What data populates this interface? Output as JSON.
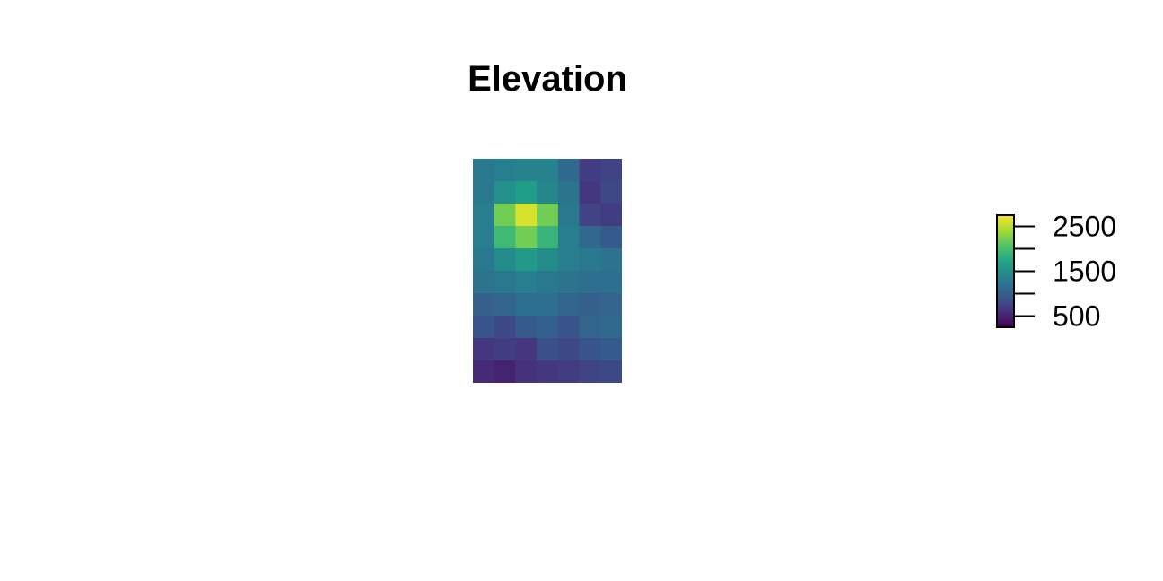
{
  "chart_data": {
    "type": "heatmap",
    "title": "Elevation",
    "xlabel": "",
    "ylabel": "",
    "colormap": "viridis",
    "value_range": [
      250,
      2750
    ],
    "legend": {
      "position": "right",
      "tick_values": [
        500,
        1000,
        1500,
        2000,
        2500
      ],
      "labeled_ticks": [
        {
          "value": 500,
          "label": "500"
        },
        {
          "value": 1500,
          "label": "1500"
        },
        {
          "value": 2500,
          "label": "2500"
        }
      ]
    },
    "grid_rows": 10,
    "grid_cols": 7,
    "values": [
      [
        1250,
        1300,
        1350,
        1350,
        1100,
        700,
        750
      ],
      [
        1250,
        1500,
        1650,
        1400,
        1200,
        650,
        800
      ],
      [
        1300,
        2200,
        2600,
        2200,
        1250,
        750,
        700
      ],
      [
        1300,
        1950,
        2200,
        1900,
        1300,
        1100,
        950
      ],
      [
        1250,
        1450,
        1600,
        1450,
        1300,
        1250,
        1200
      ],
      [
        1200,
        1250,
        1300,
        1250,
        1200,
        1150,
        1150
      ],
      [
        1000,
        1050,
        1150,
        1150,
        1050,
        1000,
        1050
      ],
      [
        900,
        800,
        950,
        1000,
        900,
        1050,
        1100
      ],
      [
        650,
        700,
        650,
        850,
        800,
        900,
        950
      ],
      [
        550,
        500,
        600,
        650,
        700,
        750,
        800
      ]
    ]
  },
  "colors": {
    "viridis_stops": [
      "#440154",
      "#46327e",
      "#365c8d",
      "#277f8e",
      "#1fa187",
      "#4ac16d",
      "#a0da39",
      "#fde725"
    ]
  }
}
